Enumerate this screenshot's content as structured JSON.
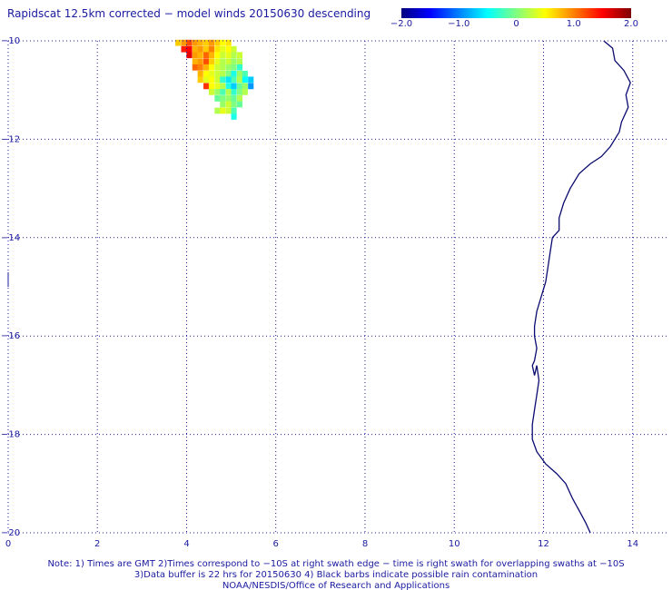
{
  "title": "Rapidscat 12.5km corrected − model winds 20150630 descending",
  "colorbar": {
    "ticks": [
      {
        "value": -2.0,
        "label": "−2.0"
      },
      {
        "value": -1.0,
        "label": "−1.0"
      },
      {
        "value": 0,
        "label": "0"
      },
      {
        "value": 1.0,
        "label": "1.0"
      },
      {
        "value": 2.0,
        "label": "2.0"
      }
    ],
    "range": [
      -2.0,
      2.0
    ],
    "colors": [
      "#00007f",
      "#0000ff",
      "#0080ff",
      "#00ffff",
      "#80ff80",
      "#ffff00",
      "#ff8000",
      "#ff0000",
      "#7f0000"
    ]
  },
  "map": {
    "x_range": [
      0,
      14.8
    ],
    "y_range": [
      -20,
      -10
    ],
    "x_ticks": [
      0,
      2,
      4,
      6,
      8,
      10,
      12,
      14
    ],
    "y_ticks": [
      -10,
      -12,
      -14,
      -16,
      -18,
      -20
    ],
    "x_tick_labels": [
      "0",
      "2",
      "4",
      "6",
      "8",
      "10",
      "12",
      "14"
    ],
    "y_tick_labels": [
      "−10",
      "−12",
      "−14",
      "−16",
      "−18",
      "−20"
    ],
    "grid": "dotted",
    "cell_size_deg": 0.125,
    "data_cells": [
      {
        "x": 3.81,
        "y": -10.04,
        "v": 0.7
      },
      {
        "x": 3.94,
        "y": -10.04,
        "v": 0.9
      },
      {
        "x": 4.06,
        "y": -10.04,
        "v": 1.2
      },
      {
        "x": 4.19,
        "y": -10.04,
        "v": 0.9
      },
      {
        "x": 4.31,
        "y": -10.04,
        "v": 0.8
      },
      {
        "x": 4.44,
        "y": -10.04,
        "v": 0.7
      },
      {
        "x": 4.56,
        "y": -10.04,
        "v": 0.9
      },
      {
        "x": 4.69,
        "y": -10.04,
        "v": 0.7
      },
      {
        "x": 4.81,
        "y": -10.04,
        "v": 0.5
      },
      {
        "x": 4.94,
        "y": -10.04,
        "v": 0.6
      },
      {
        "x": 3.94,
        "y": -10.17,
        "v": 1.4
      },
      {
        "x": 4.06,
        "y": -10.17,
        "v": 1.5
      },
      {
        "x": 4.19,
        "y": -10.17,
        "v": 0.8
      },
      {
        "x": 4.31,
        "y": -10.17,
        "v": 0.9
      },
      {
        "x": 4.44,
        "y": -10.17,
        "v": 0.7
      },
      {
        "x": 4.56,
        "y": -10.17,
        "v": 1.0
      },
      {
        "x": 4.69,
        "y": -10.17,
        "v": 0.6
      },
      {
        "x": 4.81,
        "y": -10.17,
        "v": 0.4
      },
      {
        "x": 4.94,
        "y": -10.17,
        "v": 0.5
      },
      {
        "x": 5.06,
        "y": -10.17,
        "v": 0.3
      },
      {
        "x": 4.06,
        "y": -10.29,
        "v": 1.6
      },
      {
        "x": 4.19,
        "y": -10.29,
        "v": 0.9
      },
      {
        "x": 4.31,
        "y": -10.29,
        "v": 0.8
      },
      {
        "x": 4.44,
        "y": -10.29,
        "v": 1.1
      },
      {
        "x": 4.56,
        "y": -10.29,
        "v": 0.8
      },
      {
        "x": 4.69,
        "y": -10.29,
        "v": 0.5
      },
      {
        "x": 4.81,
        "y": -10.29,
        "v": 0.3
      },
      {
        "x": 4.94,
        "y": -10.29,
        "v": 0.4
      },
      {
        "x": 5.06,
        "y": -10.29,
        "v": 0.2
      },
      {
        "x": 5.19,
        "y": -10.29,
        "v": 0.3
      },
      {
        "x": 4.19,
        "y": -10.42,
        "v": 0.8
      },
      {
        "x": 4.31,
        "y": -10.42,
        "v": 0.9
      },
      {
        "x": 4.44,
        "y": -10.42,
        "v": 1.2
      },
      {
        "x": 4.56,
        "y": -10.42,
        "v": 0.7
      },
      {
        "x": 4.69,
        "y": -10.42,
        "v": 0.4
      },
      {
        "x": 4.81,
        "y": -10.42,
        "v": 0.2
      },
      {
        "x": 4.94,
        "y": -10.42,
        "v": 0.3
      },
      {
        "x": 5.06,
        "y": -10.42,
        "v": 0.1
      },
      {
        "x": 5.19,
        "y": -10.42,
        "v": 0.2
      },
      {
        "x": 4.19,
        "y": -10.54,
        "v": 1.1
      },
      {
        "x": 4.31,
        "y": -10.54,
        "v": 1.0
      },
      {
        "x": 4.44,
        "y": -10.54,
        "v": 0.8
      },
      {
        "x": 4.56,
        "y": -10.54,
        "v": 0.5
      },
      {
        "x": 4.69,
        "y": -10.54,
        "v": 0.3
      },
      {
        "x": 4.81,
        "y": -10.54,
        "v": 0.2
      },
      {
        "x": 4.94,
        "y": -10.54,
        "v": 0.1
      },
      {
        "x": 5.06,
        "y": -10.54,
        "v": 0.0
      },
      {
        "x": 5.19,
        "y": -10.54,
        "v": -0.3
      },
      {
        "x": 4.31,
        "y": -10.67,
        "v": 0.8
      },
      {
        "x": 4.44,
        "y": -10.67,
        "v": 0.5
      },
      {
        "x": 4.56,
        "y": -10.67,
        "v": 0.4
      },
      {
        "x": 4.69,
        "y": -10.67,
        "v": 0.3
      },
      {
        "x": 4.81,
        "y": -10.67,
        "v": 0.2
      },
      {
        "x": 4.94,
        "y": -10.67,
        "v": 0.0
      },
      {
        "x": 5.06,
        "y": -10.67,
        "v": -0.4
      },
      {
        "x": 5.19,
        "y": -10.67,
        "v": 0.1
      },
      {
        "x": 5.31,
        "y": -10.67,
        "v": -0.2
      },
      {
        "x": 4.31,
        "y": -10.79,
        "v": 0.7
      },
      {
        "x": 4.44,
        "y": -10.79,
        "v": 0.4
      },
      {
        "x": 4.56,
        "y": -10.79,
        "v": 0.5
      },
      {
        "x": 4.69,
        "y": -10.79,
        "v": 0.3
      },
      {
        "x": 4.81,
        "y": -10.79,
        "v": -0.3
      },
      {
        "x": 4.94,
        "y": -10.79,
        "v": -0.6
      },
      {
        "x": 5.06,
        "y": -10.79,
        "v": -0.2
      },
      {
        "x": 5.19,
        "y": -10.79,
        "v": 0.2
      },
      {
        "x": 5.31,
        "y": -10.79,
        "v": -0.5
      },
      {
        "x": 5.44,
        "y": -10.79,
        "v": -0.7
      },
      {
        "x": 4.44,
        "y": -10.92,
        "v": 1.3
      },
      {
        "x": 4.56,
        "y": -10.92,
        "v": 0.5
      },
      {
        "x": 4.69,
        "y": -10.92,
        "v": 0.4
      },
      {
        "x": 4.81,
        "y": -10.92,
        "v": 0.2
      },
      {
        "x": 4.94,
        "y": -10.92,
        "v": -0.4
      },
      {
        "x": 5.06,
        "y": -10.92,
        "v": -0.7
      },
      {
        "x": 5.19,
        "y": -10.92,
        "v": -0.1
      },
      {
        "x": 5.31,
        "y": -10.92,
        "v": 0.1
      },
      {
        "x": 5.44,
        "y": -10.92,
        "v": -0.9
      },
      {
        "x": 4.56,
        "y": -11.04,
        "v": 0.3
      },
      {
        "x": 4.69,
        "y": -11.04,
        "v": 0.1
      },
      {
        "x": 4.81,
        "y": -11.04,
        "v": -0.2
      },
      {
        "x": 4.94,
        "y": -11.04,
        "v": 0.2
      },
      {
        "x": 5.06,
        "y": -11.04,
        "v": -0.3
      },
      {
        "x": 5.19,
        "y": -11.04,
        "v": 0.0
      },
      {
        "x": 5.31,
        "y": -11.04,
        "v": 0.2
      },
      {
        "x": 4.69,
        "y": -11.17,
        "v": -0.1
      },
      {
        "x": 4.81,
        "y": -11.17,
        "v": 0.0
      },
      {
        "x": 4.94,
        "y": -11.17,
        "v": 0.1
      },
      {
        "x": 5.06,
        "y": -11.17,
        "v": -0.1
      },
      {
        "x": 5.19,
        "y": -11.17,
        "v": 0.2
      },
      {
        "x": 4.81,
        "y": -11.29,
        "v": 0.1
      },
      {
        "x": 4.94,
        "y": -11.29,
        "v": 0.3
      },
      {
        "x": 5.06,
        "y": -11.29,
        "v": 0.0
      },
      {
        "x": 5.19,
        "y": -11.29,
        "v": -0.1
      },
      {
        "x": 4.69,
        "y": -11.42,
        "v": 0.2
      },
      {
        "x": 4.81,
        "y": -11.42,
        "v": 0.4
      },
      {
        "x": 4.94,
        "y": -11.42,
        "v": 0.3
      },
      {
        "x": 5.06,
        "y": -11.42,
        "v": -0.2
      },
      {
        "x": 5.06,
        "y": -11.54,
        "v": -0.4
      }
    ],
    "coastline": [
      [
        13.35,
        -10.0
      ],
      [
        13.55,
        -10.15
      ],
      [
        13.6,
        -10.4
      ],
      [
        13.8,
        -10.6
      ],
      [
        13.95,
        -10.85
      ],
      [
        13.85,
        -11.1
      ],
      [
        13.9,
        -11.35
      ],
      [
        13.75,
        -11.65
      ],
      [
        13.7,
        -11.85
      ],
      [
        13.5,
        -12.15
      ],
      [
        13.3,
        -12.35
      ],
      [
        13.05,
        -12.5
      ],
      [
        12.8,
        -12.7
      ],
      [
        12.6,
        -13.0
      ],
      [
        12.45,
        -13.3
      ],
      [
        12.35,
        -13.6
      ],
      [
        12.35,
        -13.85
      ],
      [
        12.2,
        -14.0
      ],
      [
        12.15,
        -14.3
      ],
      [
        12.1,
        -14.6
      ],
      [
        12.05,
        -14.9
      ],
      [
        11.95,
        -15.2
      ],
      [
        11.85,
        -15.5
      ],
      [
        11.8,
        -15.8
      ],
      [
        11.8,
        -16.0
      ],
      [
        11.85,
        -16.25
      ],
      [
        11.8,
        -16.5
      ],
      [
        11.75,
        -16.6
      ],
      [
        11.8,
        -16.8
      ],
      [
        11.85,
        -16.6
      ],
      [
        11.9,
        -16.9
      ],
      [
        11.85,
        -17.2
      ],
      [
        11.8,
        -17.5
      ],
      [
        11.75,
        -17.8
      ],
      [
        11.75,
        -18.1
      ],
      [
        11.85,
        -18.35
      ],
      [
        12.05,
        -18.6
      ],
      [
        12.3,
        -18.8
      ],
      [
        12.5,
        -19.0
      ],
      [
        12.65,
        -19.3
      ],
      [
        12.8,
        -19.55
      ],
      [
        12.95,
        -19.8
      ],
      [
        13.05,
        -20.0
      ]
    ]
  },
  "notes": {
    "line1": "Note: 1) Times are GMT 2)Times correspond to −10S at right swath edge − time is right swath for overlapping swaths at −10S",
    "line2": "3)Data buffer is 22 hrs for 20150630 4) Black barbs indicate possible rain contamination",
    "line3": "NOAA/NESDIS/Office of Research and Applications"
  }
}
